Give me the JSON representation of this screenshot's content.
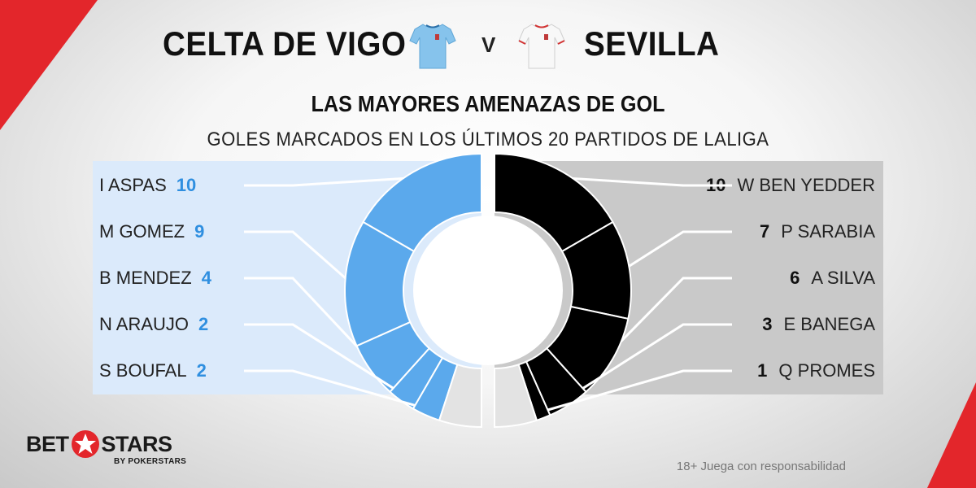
{
  "header": {
    "home_team": "CELTA DE VIGO",
    "versus": "V",
    "away_team": "SEVILLA",
    "home_shirt_icon": "light-blue-shirt-icon",
    "away_shirt_icon": "white-shirt-icon"
  },
  "chart_data": {
    "type": "pie",
    "title": "LAS MAYORES AMENAZAS DE GOL",
    "subtitle": "GOLES MARCADOS EN LOS ÚLTIMOS 20 PARTIDOS DE LALIGA",
    "series": [
      {
        "name": "CELTA DE VIGO",
        "color": "#5ba9ec",
        "other_color": "#e3e3e3",
        "categories": [
          "I ASPAS",
          "M GOMEZ",
          "B MENDEZ",
          "N ARAUJO",
          "S BOUFAL"
        ],
        "values": [
          10,
          9,
          4,
          2,
          2
        ],
        "other_value": 3
      },
      {
        "name": "SEVILLA",
        "color": "#000000",
        "other_color": "#e3e3e3",
        "categories": [
          "W BEN YEDDER",
          "P SARABIA",
          "A SILVA",
          "E BANEGA",
          "Q PROMES"
        ],
        "values": [
          10,
          7,
          6,
          3,
          1
        ],
        "other_value": 3
      }
    ]
  },
  "brand": {
    "word1": "BET",
    "word2": "STARS",
    "sub": "BY POKERSTARS",
    "star_color": "#e3262b"
  },
  "footer": {
    "disclaimer": "18+ Juega con responsabilidad"
  }
}
